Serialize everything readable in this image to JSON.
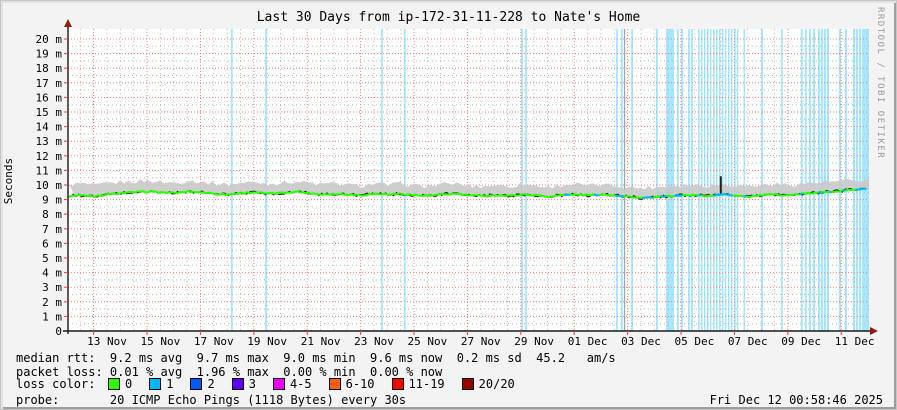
{
  "title": "Last 30 Days from ip-172-31-11-228 to Nate's Home",
  "ylabel": "Seconds",
  "watermark": "RRDTOOL / TOBI OETIKER",
  "footer_datetime": "Fri Dec 12 00:58:46 2025",
  "stats": {
    "line1": "median rtt:  9.2 ms avg  9.7 ms max  9.0 ms min  9.6 ms now  0.2 ms sd  45.2   am/s",
    "line2": "packet loss: 0.01 % avg  1.96 % max  0.00 % min  0.00 % now",
    "loss_color_label": "loss color:",
    "line4": "probe:       20 ICMP Echo Pings (1118 Bytes) every 30s"
  },
  "legend": [
    {
      "label": "0",
      "color": "#26ff00"
    },
    {
      "label": "1",
      "color": "#00b8ff"
    },
    {
      "label": "2",
      "color": "#0059ff"
    },
    {
      "label": "3",
      "color": "#5e00ff"
    },
    {
      "label": "4-5",
      "color": "#ee00ff"
    },
    {
      "label": "6-10",
      "color": "#ff5e00"
    },
    {
      "label": "11-19",
      "color": "#ff0000"
    },
    {
      "label": "20/20",
      "color": "#990000"
    }
  ],
  "colors": {
    "median_line": "#26ff00",
    "loss1_line": "#00b8ff",
    "smoke": "#c9c9c9",
    "loss_bar": "rgba(0,184,255,0.35)",
    "grid_major": "#ee8080",
    "grid_minor": "#bbbbbb",
    "axis": "#1a1a1a",
    "arrow": "#8f1d12",
    "tick": "#dd4444",
    "canvas": "#ffffff",
    "background": "#f3f3f3"
  },
  "chart_data": {
    "type": "line",
    "subtype": "smokeping-latency",
    "title": "Last 30 Days from ip-172-31-11-228 to Nate's Home",
    "xlabel": "",
    "ylabel": "Seconds",
    "ylim_ms": [
      0,
      20
    ],
    "x_span_days": 30,
    "grid": {
      "x_major_start_day": 0.96,
      "x_major_step_days": 2,
      "x_minor_start_day": 0.46,
      "x_minor_step_days": 0.5,
      "y_major_step_ms": 1,
      "y_minor_step_ms": 0.5
    },
    "x_ticks": [
      {
        "day": 1.46,
        "label": "13 Nov"
      },
      {
        "day": 3.46,
        "label": "15 Nov"
      },
      {
        "day": 5.46,
        "label": "17 Nov"
      },
      {
        "day": 7.46,
        "label": "19 Nov"
      },
      {
        "day": 9.46,
        "label": "21 Nov"
      },
      {
        "day": 11.46,
        "label": "23 Nov"
      },
      {
        "day": 13.46,
        "label": "25 Nov"
      },
      {
        "day": 15.46,
        "label": "27 Nov"
      },
      {
        "day": 17.46,
        "label": "29 Nov"
      },
      {
        "day": 19.46,
        "label": "01 Dec"
      },
      {
        "day": 21.46,
        "label": "03 Dec"
      },
      {
        "day": 23.46,
        "label": "05 Dec"
      },
      {
        "day": 25.46,
        "label": "07 Dec"
      },
      {
        "day": 27.46,
        "label": "09 Dec"
      },
      {
        "day": 29.46,
        "label": "11 Dec"
      }
    ],
    "y_ticks": [
      {
        "ms": 0,
        "label": "0"
      },
      {
        "ms": 1,
        "label": "1 m"
      },
      {
        "ms": 2,
        "label": "2 m"
      },
      {
        "ms": 3,
        "label": "3 m"
      },
      {
        "ms": 4,
        "label": "4 m"
      },
      {
        "ms": 5,
        "label": "5 m"
      },
      {
        "ms": 6,
        "label": "6 m"
      },
      {
        "ms": 7,
        "label": "7 m"
      },
      {
        "ms": 8,
        "label": "8 m"
      },
      {
        "ms": 9,
        "label": "9 m"
      },
      {
        "ms": 10,
        "label": "10 m"
      },
      {
        "ms": 11,
        "label": "11 m"
      },
      {
        "ms": 12,
        "label": "12 m"
      },
      {
        "ms": 13,
        "label": "13 m"
      },
      {
        "ms": 14,
        "label": "14 m"
      },
      {
        "ms": 15,
        "label": "15 m"
      },
      {
        "ms": 16,
        "label": "16 m"
      },
      {
        "ms": 17,
        "label": "17 m"
      },
      {
        "ms": 18,
        "label": "18 m"
      },
      {
        "ms": 19,
        "label": "19 m"
      },
      {
        "ms": 20,
        "label": "20 m"
      }
    ],
    "sample_step_days": 0.5,
    "median_series_ms": [
      9.25,
      9.3,
      9.2,
      9.35,
      9.45,
      9.5,
      9.55,
      9.5,
      9.45,
      9.55,
      9.5,
      9.4,
      9.35,
      9.45,
      9.5,
      9.4,
      9.45,
      9.55,
      9.45,
      9.35,
      9.4,
      9.35,
      9.3,
      9.4,
      9.35,
      9.4,
      9.3,
      9.25,
      9.35,
      9.4,
      9.3,
      9.25,
      9.3,
      9.25,
      9.35,
      9.3,
      9.2,
      9.3,
      9.35,
      9.3,
      9.35,
      9.3,
      9.2,
      9.1,
      9.15,
      9.25,
      9.3,
      9.3,
      9.25,
      9.35,
      9.3,
      9.2,
      9.3,
      9.35,
      9.3,
      9.4,
      9.45,
      9.55,
      9.6,
      9.7,
      9.75
    ],
    "smoke_top_ms": [
      9.9,
      10.0,
      9.85,
      10.0,
      10.1,
      10.15,
      10.2,
      10.1,
      10.05,
      10.2,
      10.1,
      10.0,
      9.95,
      10.05,
      10.1,
      10.0,
      10.05,
      10.15,
      10.05,
      9.95,
      10.0,
      9.9,
      9.85,
      10.0,
      9.9,
      10.0,
      9.85,
      9.8,
      9.95,
      10.0,
      9.85,
      9.8,
      9.9,
      9.8,
      9.95,
      9.85,
      9.75,
      9.9,
      9.95,
      9.85,
      9.9,
      9.85,
      9.75,
      9.7,
      9.75,
      9.85,
      9.9,
      9.9,
      9.85,
      9.95,
      9.9,
      9.8,
      9.9,
      9.95,
      9.9,
      10.0,
      10.05,
      10.1,
      10.15,
      10.2,
      10.25
    ],
    "loss_bars_days": [
      {
        "d": 6.1,
        "w": 0.07
      },
      {
        "d": 7.38,
        "w": 0.07
      },
      {
        "d": 11.72,
        "w": 0.07
      },
      {
        "d": 12.58,
        "w": 0.07
      },
      {
        "d": 16.97,
        "w": 0.07
      },
      {
        "d": 17.12,
        "w": 0.07
      },
      {
        "d": 20.52,
        "w": 0.07
      },
      {
        "d": 20.71,
        "w": 0.07
      },
      {
        "d": 21.09,
        "w": 0.07
      },
      {
        "d": 22.02,
        "w": 0.07
      },
      {
        "d": 22.4,
        "w": 0.3
      },
      {
        "d": 22.81,
        "w": 0.07
      },
      {
        "d": 22.96,
        "w": 0.07
      },
      {
        "d": 23.22,
        "w": 0.07
      },
      {
        "d": 23.33,
        "w": 0.07
      },
      {
        "d": 23.6,
        "w": 0.06
      },
      {
        "d": 23.71,
        "w": 0.06
      },
      {
        "d": 23.82,
        "w": 0.06
      },
      {
        "d": 23.93,
        "w": 0.06
      },
      {
        "d": 24.04,
        "w": 0.06
      },
      {
        "d": 24.16,
        "w": 0.06
      },
      {
        "d": 24.27,
        "w": 0.06
      },
      {
        "d": 24.38,
        "w": 0.06
      },
      {
        "d": 24.49,
        "w": 0.06
      },
      {
        "d": 24.6,
        "w": 0.06
      },
      {
        "d": 24.72,
        "w": 0.06
      },
      {
        "d": 24.83,
        "w": 0.06
      },
      {
        "d": 24.95,
        "w": 0.06
      },
      {
        "d": 25.05,
        "w": 0.06
      },
      {
        "d": 25.3,
        "w": 0.06
      },
      {
        "d": 25.96,
        "w": 0.07
      },
      {
        "d": 26.7,
        "w": 0.07
      },
      {
        "d": 27.45,
        "w": 0.07
      },
      {
        "d": 27.6,
        "w": 0.07
      },
      {
        "d": 27.75,
        "w": 0.08
      },
      {
        "d": 27.9,
        "w": 0.08
      },
      {
        "d": 28.09,
        "w": 0.08
      },
      {
        "d": 28.2,
        "w": 0.08
      },
      {
        "d": 28.31,
        "w": 0.08
      },
      {
        "d": 28.42,
        "w": 0.08
      },
      {
        "d": 28.87,
        "w": 0.08
      },
      {
        "d": 29.1,
        "w": 0.08
      },
      {
        "d": 29.4,
        "w": 0.08
      },
      {
        "d": 29.51,
        "w": 0.08
      },
      {
        "d": 29.62,
        "w": 0.08
      },
      {
        "d": 29.73,
        "w": 0.08
      },
      {
        "d": 29.81,
        "w": 0.19
      }
    ],
    "dark_bar_day": {
      "d": 20.82,
      "w": 0.05
    },
    "blue_segments_days": [
      [
        18.55,
        18.8
      ],
      [
        19.7,
        20.0
      ],
      [
        20.45,
        20.85
      ],
      [
        21.45,
        21.95
      ],
      [
        22.15,
        22.5
      ],
      [
        22.7,
        23.05
      ],
      [
        23.55,
        23.75
      ],
      [
        24.15,
        24.95
      ],
      [
        25.25,
        25.45
      ],
      [
        26.65,
        26.8
      ],
      [
        27.4,
        27.6
      ],
      [
        28.05,
        28.25
      ],
      [
        28.45,
        28.7
      ],
      [
        29.0,
        29.15
      ],
      [
        29.45,
        30.0
      ]
    ],
    "spike": {
      "day": 24.45,
      "top_ms": 10.6
    },
    "stats": {
      "median_rtt": {
        "avg": "9.2 ms",
        "max": "9.7 ms",
        "min": "9.0 ms",
        "now": "9.6 ms",
        "sd": "0.2 ms",
        "rate": "45.2 am/s"
      },
      "packet_loss": {
        "avg": "0.01 %",
        "max": "1.96 %",
        "min": "0.00 %",
        "now": "0.00 %"
      },
      "probe": "20 ICMP Echo Pings (1118 Bytes) every 30s"
    },
    "legend_position": "bottom",
    "grid_on": true
  }
}
